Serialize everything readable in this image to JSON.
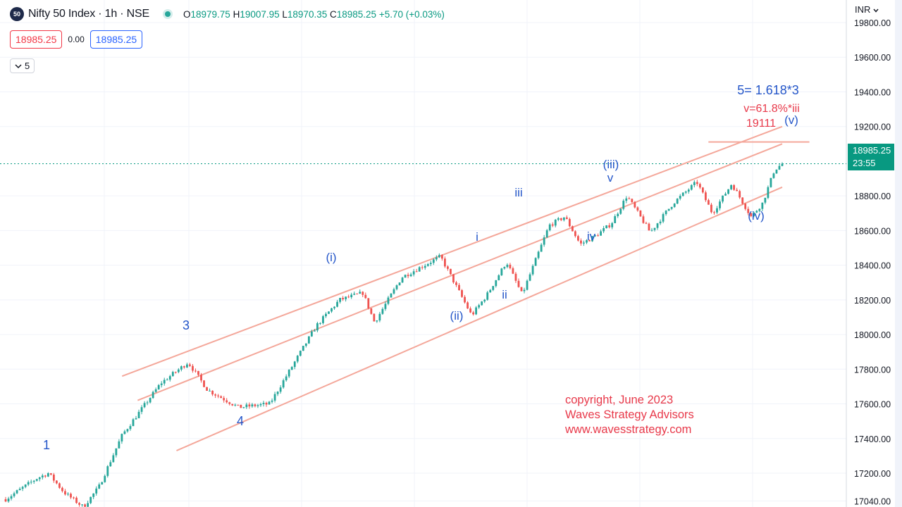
{
  "header": {
    "logo_text": "50",
    "title": "Nifty 50 Index · 1h · NSE",
    "ohlc": {
      "o_label": "O",
      "o": "18979.75",
      "h_label": "H",
      "h": "19007.95",
      "l_label": "L",
      "l": "18970.35",
      "c_label": "C",
      "c": "18985.25",
      "change": "+5.70 (+0.03%)"
    }
  },
  "quote": {
    "sell": "18985.25",
    "spread": "0.00",
    "buy": "18985.25"
  },
  "indicator_toggle": {
    "icon": "chevron-down-icon",
    "count": "5"
  },
  "currency": "INR",
  "last_price": {
    "value": "18985.25",
    "countdown": "23:55",
    "color": "#089981"
  },
  "colors": {
    "up": "#26a69a",
    "down": "#ef5350",
    "channel": "#f4a79a",
    "wave_label": "#2456c9",
    "annotation": "#e8394a"
  },
  "chart_data": {
    "type": "candlestick",
    "y_axis": {
      "min": 17000,
      "max": 19850,
      "side": "right",
      "ticks": [
        "19800.00",
        "19600.00",
        "19400.00",
        "19200.00",
        "18800.00",
        "18600.00",
        "18400.00",
        "18200.00",
        "18000.00",
        "17800.00",
        "17600.00",
        "17400.00",
        "17200.00",
        "17040.00"
      ]
    },
    "price_path_waypoints": [
      {
        "t": 0,
        "p": 17050
      },
      {
        "t": 0.04,
        "p": 17170
      },
      {
        "t": 0.055,
        "p": 17200
      },
      {
        "t": 0.075,
        "p": 17090
      },
      {
        "t": 0.1,
        "p": 17005
      },
      {
        "t": 0.12,
        "p": 17120
      },
      {
        "t": 0.15,
        "p": 17420
      },
      {
        "t": 0.2,
        "p": 17720
      },
      {
        "t": 0.235,
        "p": 17840
      },
      {
        "t": 0.26,
        "p": 17680
      },
      {
        "t": 0.3,
        "p": 17580
      },
      {
        "t": 0.34,
        "p": 17600
      },
      {
        "t": 0.4,
        "p": 18050
      },
      {
        "t": 0.43,
        "p": 18200
      },
      {
        "t": 0.46,
        "p": 18240
      },
      {
        "t": 0.475,
        "p": 18070
      },
      {
        "t": 0.51,
        "p": 18330
      },
      {
        "t": 0.56,
        "p": 18450
      },
      {
        "t": 0.58,
        "p": 18280
      },
      {
        "t": 0.6,
        "p": 18110
      },
      {
        "t": 0.62,
        "p": 18230
      },
      {
        "t": 0.645,
        "p": 18420
      },
      {
        "t": 0.665,
        "p": 18230
      },
      {
        "t": 0.7,
        "p": 18630
      },
      {
        "t": 0.72,
        "p": 18680
      },
      {
        "t": 0.74,
        "p": 18520
      },
      {
        "t": 0.76,
        "p": 18570
      },
      {
        "t": 0.78,
        "p": 18640
      },
      {
        "t": 0.8,
        "p": 18800
      },
      {
        "t": 0.83,
        "p": 18590
      },
      {
        "t": 0.86,
        "p": 18760
      },
      {
        "t": 0.89,
        "p": 18880
      },
      {
        "t": 0.91,
        "p": 18700
      },
      {
        "t": 0.935,
        "p": 18870
      },
      {
        "t": 0.96,
        "p": 18680
      },
      {
        "t": 0.975,
        "p": 18760
      },
      {
        "t": 0.99,
        "p": 18950
      },
      {
        "t": 1,
        "p": 18985
      }
    ],
    "last_close": 18985.25,
    "elliott_wave_labels": [
      {
        "text": "1",
        "color": "#2456c9"
      },
      {
        "text": "3",
        "color": "#2456c9"
      },
      {
        "text": "4",
        "color": "#2456c9"
      },
      {
        "text": "(i)",
        "color": "#2456c9"
      },
      {
        "text": "(ii)",
        "color": "#2456c9"
      },
      {
        "text": "i",
        "color": "#2456c9"
      },
      {
        "text": "ii",
        "color": "#2456c9"
      },
      {
        "text": "iii",
        "color": "#2456c9"
      },
      {
        "text": "iv",
        "color": "#2456c9"
      },
      {
        "text": "(iii)",
        "color": "#2456c9"
      },
      {
        "text": "v",
        "color": "#2456c9"
      },
      {
        "text": "(iv)",
        "color": "#2456c9"
      },
      {
        "text": "(v)",
        "color": "#2456c9"
      },
      {
        "text": "5= 1.618*3",
        "color": "#2456c9"
      },
      {
        "text": "v=61.8%*iii",
        "color": "#e8394a"
      },
      {
        "text": "19111",
        "color": "#e8394a"
      }
    ],
    "target_level": 19111,
    "channel_lines": [
      {
        "from": {
          "t": 0.15,
          "p": 17760
        },
        "to": {
          "t": 1,
          "p": 19200
        }
      },
      {
        "from": {
          "t": 0.17,
          "p": 17620
        },
        "to": {
          "t": 1,
          "p": 19100
        }
      },
      {
        "from": {
          "t": 0.22,
          "p": 17330
        },
        "to": {
          "t": 1,
          "p": 18850
        }
      }
    ],
    "copyright": [
      "copyright, June 2023",
      "Waves Strategy Advisors",
      "www.wavesstrategy.com"
    ]
  }
}
